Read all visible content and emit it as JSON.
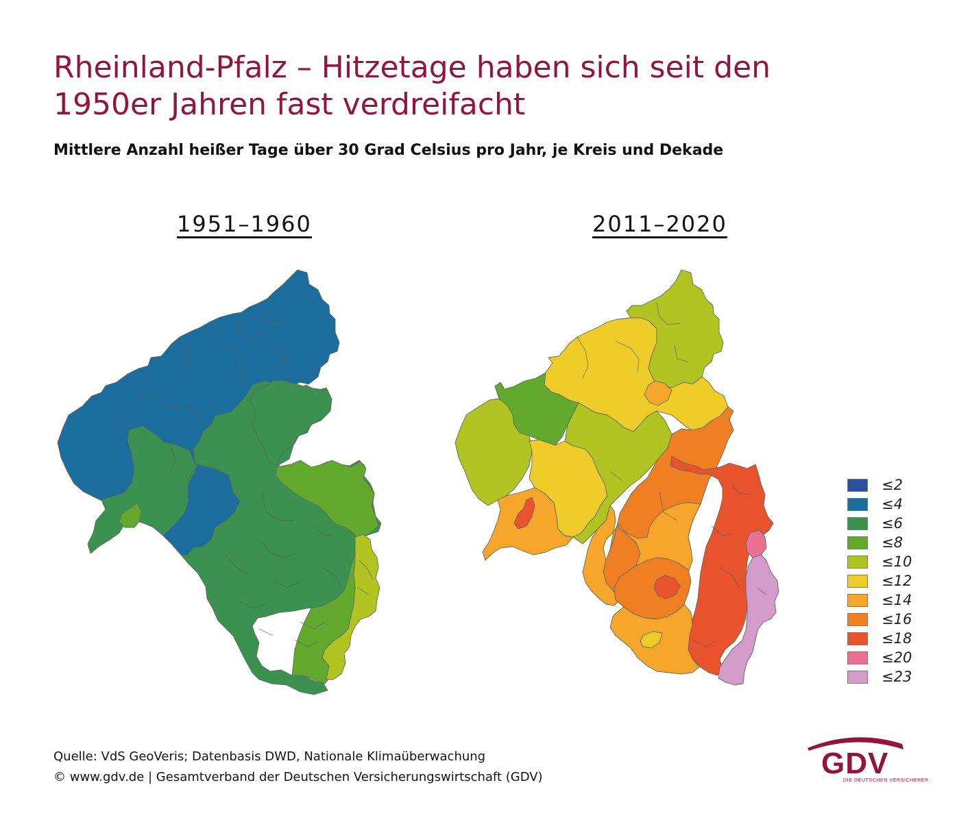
{
  "header": {
    "title_line1": "Rheinland-Pfalz – Hitzetage haben sich seit den",
    "title_line2": "1950er Jahren fast verdreifacht",
    "subtitle": "Mittlere Anzahl heißer Tage über 30 Grad Celsius pro Jahr, je Kreis und Dekade"
  },
  "maps": [
    {
      "label": "1951–1960"
    },
    {
      "label": "2011–2020"
    }
  ],
  "legend": [
    {
      "label": "≤2",
      "color": "#2e4f9c"
    },
    {
      "label": "≤4",
      "color": "#1b6d9d"
    },
    {
      "label": "≤6",
      "color": "#3a9150"
    },
    {
      "label": "≤8",
      "color": "#62a92e"
    },
    {
      "label": "≤10",
      "color": "#b1c421"
    },
    {
      "label": "≤12",
      "color": "#efcc28"
    },
    {
      "label": "≤14",
      "color": "#f6a62a"
    },
    {
      "label": "≤16",
      "color": "#ef7f22"
    },
    {
      "label": "≤18",
      "color": "#e8522d"
    },
    {
      "label": "≤20",
      "color": "#ec7092"
    },
    {
      "label": "≤23",
      "color": "#d29bc9"
    }
  ],
  "footer": {
    "source": "Quelle: VdS GeoVeris; Datenbasis DWD, Nationale Klimaüberwachung",
    "copyright": "© www.gdv.de | Gesamtverband der Deutschen Versicherungswirtschaft (GDV)"
  },
  "logo": {
    "text": "GDV",
    "tagline": "DIE DEUTSCHEN VERSICHERER",
    "color": "#93153f"
  }
}
